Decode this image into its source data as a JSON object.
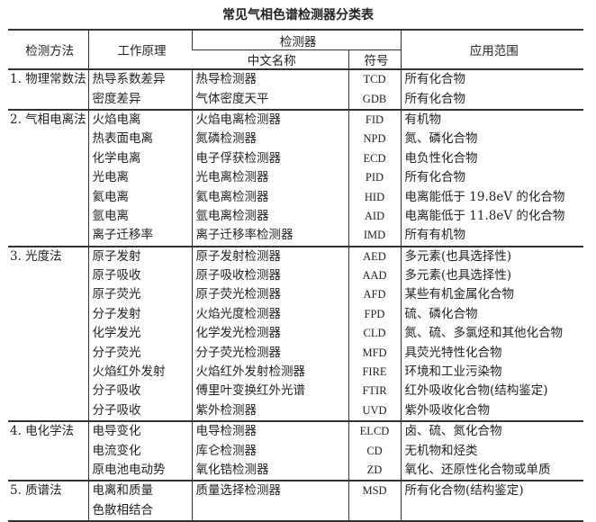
{
  "title": "常见气相色谱检测器分类表",
  "headers": {
    "method": "检测方法",
    "principle": "工作原理",
    "detector": "检测器",
    "cn_name": "中文名称",
    "symbol": "符号",
    "scope": "应用范围"
  },
  "groups": [
    {
      "method": "1. 物理常数法",
      "rows": [
        {
          "principle": "热导系数差异",
          "name": "热导检测器",
          "symbol": "TCD",
          "scope": "所有化合物"
        },
        {
          "principle": "密度差异",
          "name": "气体密度天平",
          "symbol": "GDB",
          "scope": "所有化合物"
        }
      ]
    },
    {
      "method": "2. 气相电离法",
      "rows": [
        {
          "principle": "火焰电离",
          "name": "火焰电离检测器",
          "symbol": "FID",
          "scope": "有机物"
        },
        {
          "principle": "热表面电离",
          "name": "氮磷检测器",
          "symbol": "NPD",
          "scope": "氮、磷化合物"
        },
        {
          "principle": "化学电离",
          "name": "电子俘获检测器",
          "symbol": "ECD",
          "scope": "电负性化合物"
        },
        {
          "principle": "光电离",
          "name": "光电离检测器",
          "symbol": "PID",
          "scope": "所有化合物"
        },
        {
          "principle": "氦电离",
          "name": "氦电离检测器",
          "symbol": "HID",
          "scope": "电离能低于 19.8eV 的化合物"
        },
        {
          "principle": "氩电离",
          "name": "氩电离检测器",
          "symbol": "AID",
          "scope": "电离能低于 11.8eV 的化合物"
        },
        {
          "principle": "离子迁移率",
          "name": "离子迁移率检测器",
          "symbol": "IMD",
          "scope": "所有有机物"
        }
      ]
    },
    {
      "method": "3. 光度法",
      "rows": [
        {
          "principle": "原子发射",
          "name": "原子发射检测器",
          "symbol": "AED",
          "scope": "多元素(也具选择性)"
        },
        {
          "principle": "原子吸收",
          "name": "原子吸收检测器",
          "symbol": "AAD",
          "scope": "多元素(也具选择性)"
        },
        {
          "principle": "原子荧光",
          "name": "原子荧光检测器",
          "symbol": "AFD",
          "scope": "某些有机金属化合物"
        },
        {
          "principle": "分子发射",
          "name": "火焰光度检测器",
          "symbol": "FPD",
          "scope": "硫、磷化合物"
        },
        {
          "principle": "化学发光",
          "name": "化学发光检测器",
          "symbol": "CLD",
          "scope": "氮、硫、多氯烃和其他化合物"
        },
        {
          "principle": "分子荧光",
          "name": "分子荧光检测器",
          "symbol": "MFD",
          "scope": "具荧光特性化合物"
        },
        {
          "principle": "火焰红外发射",
          "name": "火焰红外发射检测器",
          "symbol": "FIRE",
          "scope": "环境和工业污染物"
        },
        {
          "principle": "分子吸收",
          "name": "傅里叶变换红外光谱",
          "symbol": "FTIR",
          "scope": "红外吸收化合物(结构鉴定)"
        },
        {
          "principle": "分子吸收",
          "name": "紫外检测器",
          "symbol": "UVD",
          "scope": "紫外吸收化合物"
        }
      ]
    },
    {
      "method": "4. 电化学法",
      "rows": [
        {
          "principle": "电导变化",
          "name": "电导检测器",
          "symbol": "ELCD",
          "scope": "卤、硫、氮化合物"
        },
        {
          "principle": "电流变化",
          "name": "库仑检测器",
          "symbol": "CD",
          "scope": "无机物和烃类"
        },
        {
          "principle": "原电池电动势",
          "name": "氧化锆检测器",
          "symbol": "ZD",
          "scope": "氧化、还原性化合物或单质"
        }
      ]
    },
    {
      "method": "5. 质谱法",
      "rows": [
        {
          "principle": "电离和质量",
          "name": "质量选择检测器",
          "symbol": "MSD",
          "scope": "所有化合物(结构鉴定)"
        },
        {
          "principle": "色散相结合",
          "name": "",
          "symbol": "",
          "scope": ""
        }
      ]
    }
  ]
}
